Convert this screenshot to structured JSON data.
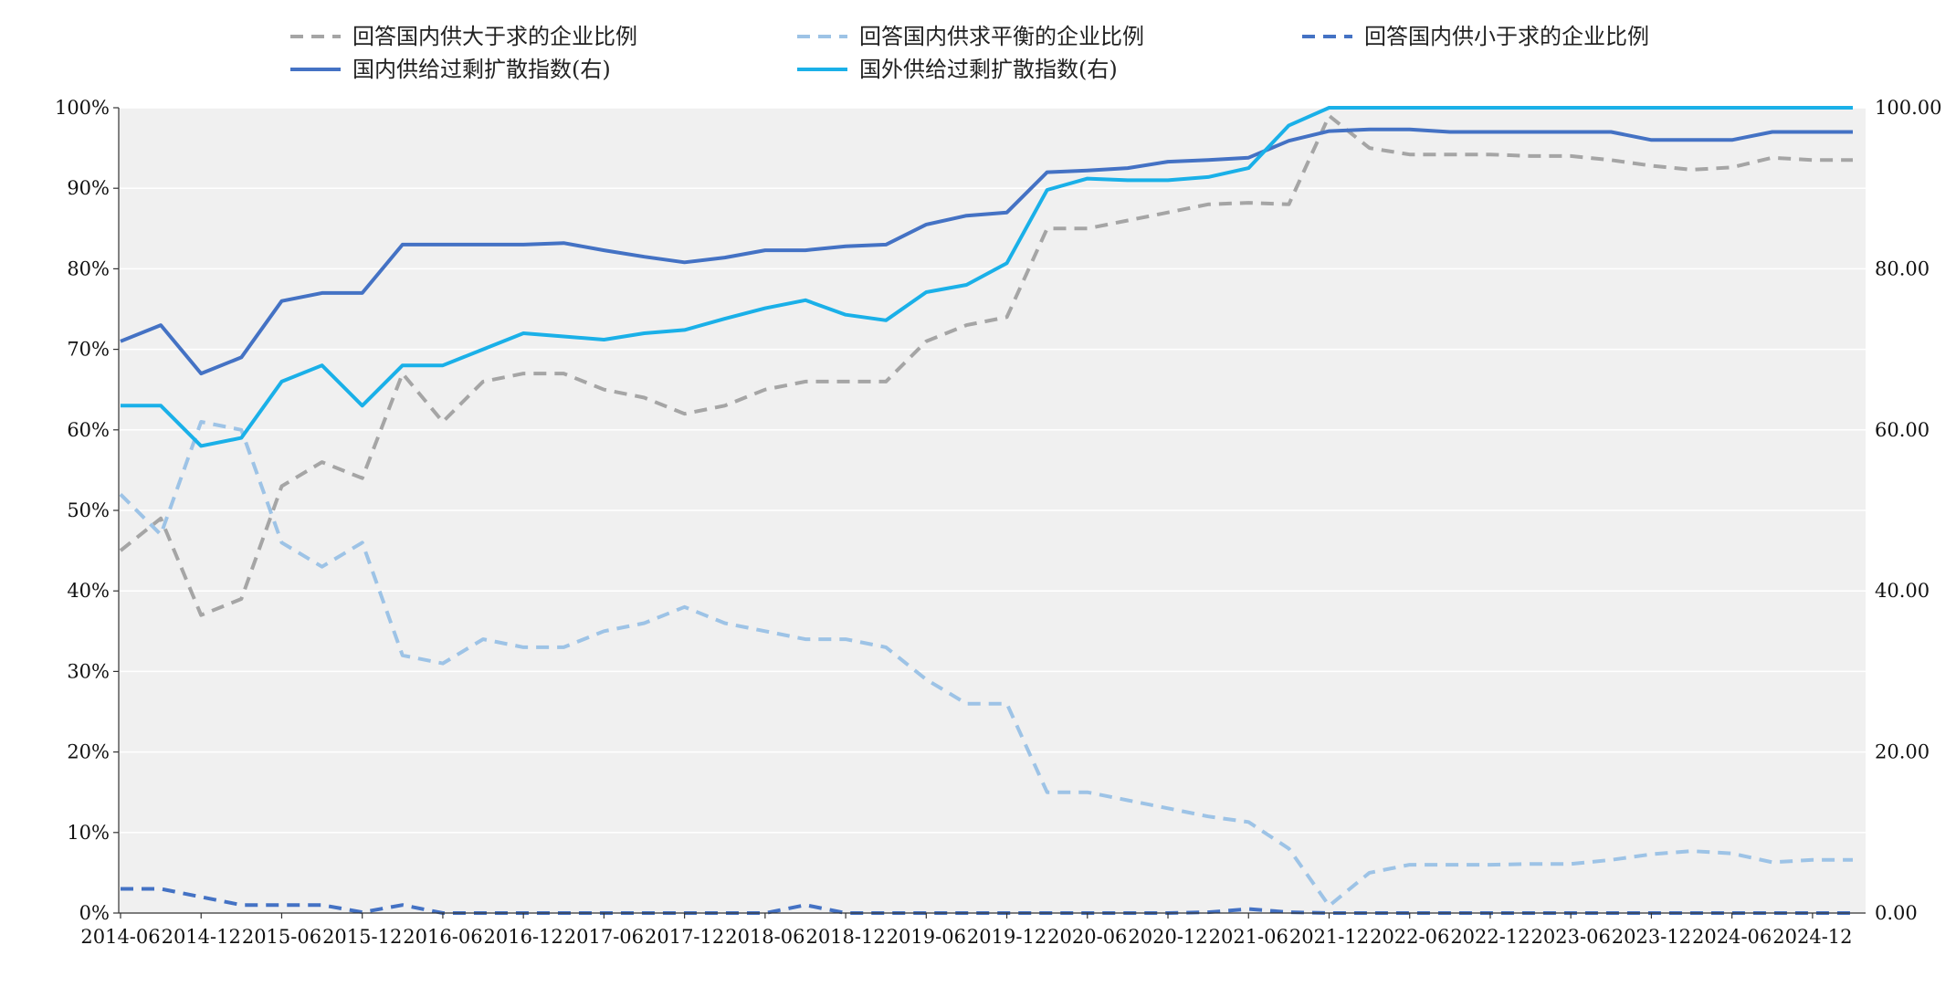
{
  "chart_data": {
    "type": "line",
    "title": "",
    "xlabel": "",
    "ylabel_left": "",
    "ylabel_right": "",
    "ylim_left": [
      0,
      100
    ],
    "ylim_right": [
      0,
      100
    ],
    "grid": true,
    "background": "#f0f0f0",
    "legend_position": "top",
    "left_ticks": [
      "0%",
      "10%",
      "20%",
      "30%",
      "40%",
      "50%",
      "60%",
      "70%",
      "80%",
      "90%",
      "100%"
    ],
    "right_ticks": [
      "0.00",
      "20.00",
      "40.00",
      "60.00",
      "80.00",
      "100.00"
    ],
    "x_ticks": [
      "2014-06",
      "2014-12",
      "2015-06",
      "2015-12",
      "2016-06",
      "2016-12",
      "2017-06",
      "2017-12",
      "2018-06",
      "2018-12",
      "2019-06",
      "2019-12",
      "2020-06",
      "2020-12",
      "2021-06",
      "2021-12",
      "2022-06",
      "2022-12",
      "2023-06",
      "2023-12",
      "2024-06",
      "2024-12"
    ],
    "x": [
      "2014-06",
      "2014-09",
      "2014-12",
      "2015-03",
      "2015-06",
      "2015-09",
      "2015-12",
      "2016-03",
      "2016-06",
      "2016-09",
      "2016-12",
      "2017-03",
      "2017-06",
      "2017-09",
      "2017-12",
      "2018-03",
      "2018-06",
      "2018-09",
      "2018-12",
      "2019-03",
      "2019-06",
      "2019-09",
      "2019-12",
      "2020-03",
      "2020-06",
      "2020-09",
      "2020-12",
      "2021-03",
      "2021-06",
      "2021-09",
      "2021-12",
      "2022-03",
      "2022-06",
      "2022-09",
      "2022-12",
      "2023-03",
      "2023-06",
      "2023-09",
      "2023-12",
      "2024-03",
      "2024-06",
      "2024-09",
      "2024-12",
      "2025-03"
    ],
    "series": [
      {
        "name": "回答国内供大于求的企业比例",
        "axis": "left",
        "style": "dashed",
        "color": "#a5a5a5",
        "values": [
          45,
          49,
          37,
          39,
          53,
          56,
          54,
          67,
          61,
          66,
          67,
          67,
          65,
          64,
          62,
          63,
          65,
          66,
          66,
          66,
          71,
          73,
          74,
          85,
          85,
          86,
          87,
          88,
          88.2,
          88,
          99,
          95,
          94.2,
          94.2,
          94.2,
          94,
          94,
          93.5,
          92.8,
          92.3,
          92.6,
          93.8,
          93.5,
          93.5
        ]
      },
      {
        "name": "回答国内供求平衡的企业比例",
        "axis": "left",
        "style": "dashed",
        "color": "#9dc3e6",
        "values": [
          52,
          47,
          61,
          60,
          46,
          43,
          46,
          32,
          31,
          34,
          33,
          33,
          35,
          36,
          38,
          36,
          35,
          34,
          34,
          33,
          29,
          26,
          26,
          15,
          15,
          14,
          13,
          12,
          11.3,
          8,
          0.9,
          5,
          6,
          6,
          6,
          6.1,
          6.1,
          6.6,
          7.3,
          7.7,
          7.4,
          6.3,
          6.6,
          6.6
        ]
      },
      {
        "name": "回答国内供小于求的企业比例",
        "axis": "left",
        "style": "dashed",
        "color": "#4472c4",
        "values": [
          3,
          3,
          2,
          1,
          1,
          1,
          0.1,
          1,
          0,
          0,
          0,
          0,
          0,
          0,
          0,
          0,
          0,
          1,
          0,
          0,
          0,
          0,
          0,
          0,
          0,
          0,
          0,
          0.1,
          0.5,
          0.1,
          0,
          0,
          0,
          0,
          0,
          0,
          0,
          0,
          0,
          0,
          0,
          0,
          0,
          0
        ]
      },
      {
        "name": "国内供给过剩扩散指数(右)",
        "axis": "right",
        "style": "solid",
        "color": "#4472c4",
        "values": [
          71,
          73,
          67,
          69,
          76,
          77,
          77,
          83,
          83,
          83,
          83,
          83.2,
          82.3,
          81.5,
          80.8,
          81.4,
          82.3,
          82.3,
          82.8,
          83,
          85.5,
          86.6,
          87,
          92,
          92.2,
          92.5,
          93.3,
          93.5,
          93.8,
          95.9,
          97.1,
          97.3,
          97.3,
          97,
          97,
          97,
          97,
          97,
          96,
          96,
          96,
          97,
          97,
          97
        ]
      },
      {
        "name": "国外供给过剩扩散指数(右)",
        "axis": "right",
        "style": "solid",
        "color": "#1ab0e8",
        "values": [
          63,
          63,
          58,
          59,
          66,
          68,
          63,
          68,
          68,
          70,
          72,
          71.6,
          71.2,
          72,
          72.4,
          73.8,
          75.1,
          76.1,
          74.3,
          73.6,
          77.1,
          78,
          80.7,
          89.8,
          91.2,
          91,
          91,
          91.4,
          92.5,
          97.8,
          100,
          100,
          100,
          100,
          100,
          100,
          100,
          100,
          100,
          100,
          100,
          100,
          100,
          100
        ]
      }
    ]
  }
}
